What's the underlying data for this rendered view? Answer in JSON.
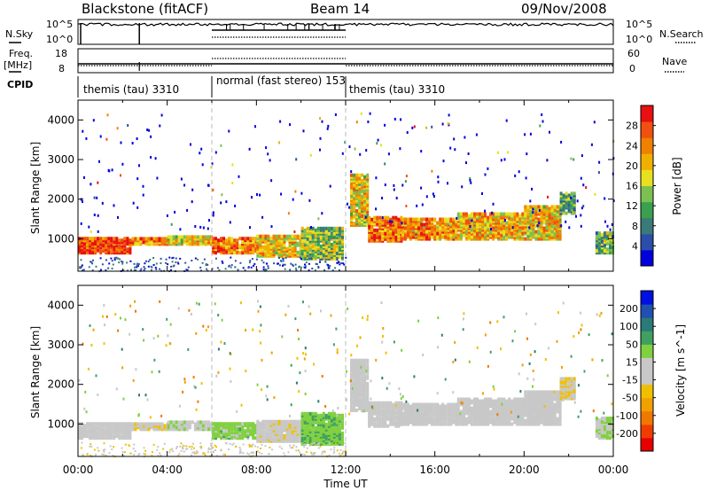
{
  "header": {
    "title": "Blackstone (fitACF)",
    "beam": "Beam 14",
    "date": "09/Nov/2008"
  },
  "status_panels": {
    "nsky_label": "N.Sky",
    "nsky_ticks": [
      "10^5",
      "10^0"
    ],
    "nsearch_label": "N.Search",
    "nsearch_ticks": [
      "10^5",
      "10^0"
    ],
    "freq_label_1": "Freq.",
    "freq_label_2": "[MHz]",
    "freq_ticks": [
      "18",
      "8"
    ],
    "nave_label": "Nave",
    "nave_ticks": [
      "60",
      "0"
    ],
    "cpid_label": "CPID",
    "cpid_segments": [
      {
        "label": "themis (tau) 3310",
        "start_hour": 0,
        "end_hour": 6
      },
      {
        "label": "normal (fast stereo) 153",
        "start_hour": 6,
        "end_hour": 12
      },
      {
        "label": "themis (tau) 3310",
        "start_hour": 12,
        "end_hour": 24
      }
    ]
  },
  "chart_data": [
    {
      "type": "heatmap",
      "parameter": "Power",
      "ylabel": "Slant Range [km]",
      "ylim": [
        180,
        4500
      ],
      "yticks": [
        "4000",
        "3000",
        "2000",
        "1000"
      ],
      "xlim_hours": [
        0,
        24
      ],
      "colorbar_label": "Power [dB]",
      "colorbar_ticks": [
        "28",
        "24",
        "20",
        "16",
        "12",
        "8",
        "4"
      ],
      "colorbar_colors": [
        "#0000dd",
        "#2b4fa8",
        "#3a7a78",
        "#3aa050",
        "#7cc050",
        "#e8e020",
        "#f0b000",
        "#f08000",
        "#f05010",
        "#e81010"
      ],
      "colorbar_range": [
        0,
        32
      ],
      "regions": [
        {
          "t0": 0.0,
          "t1": 2.4,
          "r0": 600,
          "r1": 1000,
          "level": 0.88
        },
        {
          "t0": 2.4,
          "t1": 4.0,
          "r0": 820,
          "r1": 1000,
          "level": 0.75
        },
        {
          "t0": 4.0,
          "t1": 6.0,
          "r0": 820,
          "r1": 1020,
          "level": 0.6
        },
        {
          "t0": 6.0,
          "t1": 8.0,
          "r0": 600,
          "r1": 1000,
          "level": 0.78
        },
        {
          "t0": 8.0,
          "t1": 10.0,
          "r0": 520,
          "r1": 1050,
          "level": 0.62
        },
        {
          "t0": 10.0,
          "t1": 11.8,
          "r0": 450,
          "r1": 1250,
          "level": 0.45
        },
        {
          "t0": 12.2,
          "t1": 13.0,
          "r0": 1300,
          "r1": 2600,
          "level": 0.6
        },
        {
          "t0": 13.0,
          "t1": 14.5,
          "r0": 900,
          "r1": 1500,
          "level": 0.78
        },
        {
          "t0": 14.5,
          "t1": 17.0,
          "r0": 950,
          "r1": 1450,
          "level": 0.7
        },
        {
          "t0": 17.0,
          "t1": 20.0,
          "r0": 950,
          "r1": 1600,
          "level": 0.66
        },
        {
          "t0": 20.0,
          "t1": 21.6,
          "r0": 950,
          "r1": 1800,
          "level": 0.62
        },
        {
          "t0": 21.6,
          "t1": 22.3,
          "r0": 1600,
          "r1": 2100,
          "level": 0.35
        },
        {
          "t0": 23.2,
          "t1": 24.0,
          "r0": 600,
          "r1": 1100,
          "level": 0.4
        }
      ]
    },
    {
      "type": "heatmap",
      "parameter": "Velocity",
      "ylabel": "Slant Range [km]",
      "ylim": [
        180,
        4500
      ],
      "yticks": [
        "4000",
        "3000",
        "2000",
        "1000"
      ],
      "xlim_hours": [
        0,
        24
      ],
      "colorbar_label": "Velocity [m s^-1]",
      "colorbar_ticks": [
        "200",
        "100",
        "50",
        "15",
        "-15",
        "-50",
        "-100",
        "-200"
      ],
      "colorbar_colors": [
        "#e80000",
        "#f03c00",
        "#f07800",
        "#f0a000",
        "#f0c000",
        "#c8c8c8",
        "#c8c8c8",
        "#80d040",
        "#40a060",
        "#2a7a78",
        "#2050b0",
        "#0010e0"
      ],
      "colorbar_range": [
        -250,
        250
      ],
      "regions": [
        {
          "t0": 0.0,
          "t1": 2.4,
          "r0": 600,
          "r1": 1000,
          "value": -15
        },
        {
          "t0": 2.4,
          "t1": 4.0,
          "r0": 820,
          "r1": 1000,
          "value": -30
        },
        {
          "t0": 4.0,
          "t1": 6.0,
          "r0": 820,
          "r1": 1020,
          "value": 30
        },
        {
          "t0": 6.0,
          "t1": 8.0,
          "r0": 600,
          "r1": 1000,
          "value": 60
        },
        {
          "t0": 8.0,
          "t1": 10.0,
          "r0": 520,
          "r1": 1050,
          "value": -20
        },
        {
          "t0": 10.0,
          "t1": 11.8,
          "r0": 450,
          "r1": 1250,
          "value": 70
        },
        {
          "t0": 12.2,
          "t1": 13.0,
          "r0": 1300,
          "r1": 2600,
          "value": 0
        },
        {
          "t0": 13.0,
          "t1": 14.5,
          "r0": 900,
          "r1": 1500,
          "value": 0
        },
        {
          "t0": 14.5,
          "t1": 17.0,
          "r0": 950,
          "r1": 1450,
          "value": 5
        },
        {
          "t0": 17.0,
          "t1": 20.0,
          "r0": 950,
          "r1": 1600,
          "value": 0
        },
        {
          "t0": 20.0,
          "t1": 21.6,
          "r0": 950,
          "r1": 1800,
          "value": -5
        },
        {
          "t0": 21.6,
          "t1": 22.3,
          "r0": 1600,
          "r1": 2100,
          "value": -40
        },
        {
          "t0": 23.2,
          "t1": 24.0,
          "r0": 600,
          "r1": 1100,
          "value": 40
        }
      ]
    }
  ],
  "x_axis": {
    "label": "Time UT",
    "ticks": [
      "00:00",
      "04:00",
      "08:00",
      "12:00",
      "16:00",
      "20:00",
      "00:00"
    ]
  },
  "mode_change_hours": [
    6,
    12
  ]
}
